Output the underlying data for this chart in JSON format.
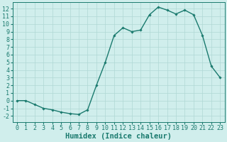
{
  "x": [
    0,
    1,
    2,
    3,
    4,
    5,
    6,
    7,
    8,
    9,
    10,
    11,
    12,
    13,
    14,
    15,
    16,
    17,
    18,
    19,
    20,
    21,
    22,
    23
  ],
  "y": [
    0,
    0,
    -0.5,
    -1,
    -1.2,
    -1.5,
    -1.7,
    -1.8,
    -1.2,
    2,
    5,
    8.5,
    9.5,
    9,
    9.2,
    11.2,
    12.2,
    11.8,
    11.3,
    11.8,
    11.2,
    8.5,
    4.5,
    3
  ],
  "line_color": "#1a7a6e",
  "marker": "D",
  "marker_size": 1.8,
  "bg_color": "#d0eeec",
  "grid_color": "#b0d8d4",
  "xlabel": "Humidex (Indice chaleur)",
  "xlabel_fontsize": 7.5,
  "xlim": [
    -0.5,
    23.5
  ],
  "ylim": [
    -2.8,
    12.8
  ],
  "yticks": [
    -2,
    -1,
    0,
    1,
    2,
    3,
    4,
    5,
    6,
    7,
    8,
    9,
    10,
    11,
    12
  ],
  "xticks": [
    0,
    1,
    2,
    3,
    4,
    5,
    6,
    7,
    8,
    9,
    10,
    11,
    12,
    13,
    14,
    15,
    16,
    17,
    18,
    19,
    20,
    21,
    22,
    23
  ],
  "tick_label_fontsize": 6.0,
  "line_width": 1.0
}
